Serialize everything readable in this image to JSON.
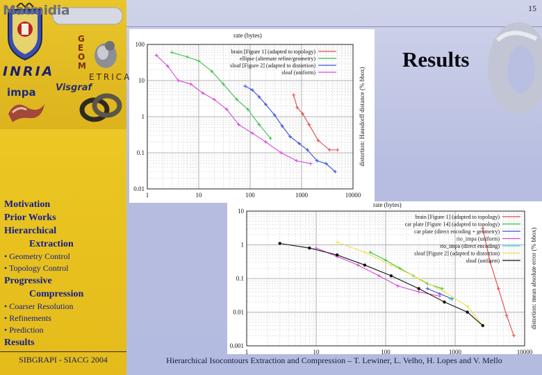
{
  "slide": {
    "number": "15",
    "title": "Results"
  },
  "logos": {
    "matmidia": "Matmidia",
    "geom_letters": [
      "G",
      "E",
      "O",
      "M"
    ],
    "geom_word": "ETRICA",
    "inria": "INRIA",
    "impa": "impa",
    "visgraf": "Visgraf"
  },
  "sidebar": {
    "items": [
      {
        "label": "Motivation",
        "kind": "heading"
      },
      {
        "label": "Prior Works",
        "kind": "heading"
      },
      {
        "label": "Hierarchical",
        "kind": "heading"
      },
      {
        "label": "Extraction",
        "kind": "heading-indent"
      },
      {
        "label": "• Geometry Control",
        "kind": "sub"
      },
      {
        "label": "• Topology Control",
        "kind": "sub"
      },
      {
        "label": "Progressive",
        "kind": "heading"
      },
      {
        "label": "Compression",
        "kind": "heading-indent"
      },
      {
        "label": "• Coarser Resolution",
        "kind": "sub"
      },
      {
        "label": "• Refinements",
        "kind": "sub"
      },
      {
        "label": "• Prediction",
        "kind": "sub"
      },
      {
        "label": "Results",
        "kind": "heading"
      }
    ]
  },
  "footer": {
    "left": "SIBGRAPI - SIACG 2004",
    "main": "Hierarchical Isocontours Extraction and Compression – T. Lewiner, L. Velho, H. Lopes and V. Mello"
  },
  "chart_data": [
    {
      "type": "line",
      "xscale": "log",
      "yscale": "log",
      "title": "",
      "xlabel": "rate (bytes)",
      "ylabel": "distortion: Hausdorff distance (% bbox)",
      "xlim": [
        1,
        10000
      ],
      "ylim": [
        0.01,
        100
      ],
      "xticks": [
        "1",
        "10",
        "100",
        "1000",
        "10000"
      ],
      "yticks": [
        "0.01",
        "0.1",
        "1",
        "10",
        "100"
      ],
      "grid": true,
      "legend_position": "top-right",
      "series": [
        {
          "name": "brain [Figure 1] (adapted to topology)",
          "color": "#e24a4a",
          "x": [
            700,
            820,
            1050,
            1400,
            2100,
            3500,
            5000
          ],
          "y": [
            4,
            1.8,
            1.2,
            0.6,
            0.22,
            0.12,
            0.12
          ]
        },
        {
          "name": "ellipse (alternate refine/geometry)",
          "color": "#3fbf4f",
          "x": [
            3,
            6,
            10,
            18,
            30,
            55,
            90,
            150,
            250
          ],
          "y": [
            60,
            45,
            35,
            18,
            8,
            3,
            1.6,
            0.6,
            0.25
          ]
        },
        {
          "name": "sloaf [Figure 2] (adapted to distortion)",
          "color": "#3a4fd6",
          "x": [
            80,
            110,
            150,
            200,
            300,
            420,
            600,
            900,
            1300,
            2000,
            3000,
            4500
          ],
          "y": [
            7,
            5.5,
            3.5,
            2.2,
            1.1,
            0.55,
            0.28,
            0.18,
            0.12,
            0.06,
            0.05,
            0.03
          ]
        },
        {
          "name": "sloaf (uniform)",
          "color": "#d24ad6",
          "x": [
            1.5,
            2.5,
            4,
            7,
            12,
            20,
            35,
            60,
            110,
            200,
            400,
            800,
            1500
          ],
          "y": [
            50,
            25,
            10,
            8,
            4.5,
            3,
            1.6,
            0.6,
            0.35,
            0.2,
            0.1,
            0.06,
            0.05
          ]
        }
      ]
    },
    {
      "type": "line",
      "xscale": "log",
      "yscale": "log",
      "title": "",
      "xlabel": "rate (bytes)",
      "ylabel": "distortion: mean absolute error (% bbox)",
      "xlim": [
        1,
        10000
      ],
      "ylim": [
        0.001,
        10
      ],
      "xticks": [
        "1",
        "10",
        "100",
        "1000",
        "10000"
      ],
      "yticks": [
        "0.001",
        "0.01",
        "0.1",
        "1",
        "10"
      ],
      "grid": true,
      "legend_position": "top-right",
      "series": [
        {
          "name": "brain [Figure 1] (adapted to topology)",
          "color": "#e24a4a",
          "x": [
            2500,
            3200,
            4200,
            5500,
            7000
          ],
          "y": [
            3,
            0.3,
            0.05,
            0.008,
            0.002
          ]
        },
        {
          "name": "car plate [Figure 14] (adapted to topology)",
          "color": "#3fbf4f",
          "x": [
            60,
            100,
            160,
            250,
            400,
            650
          ],
          "y": [
            0.6,
            0.35,
            0.2,
            0.12,
            0.07,
            0.05
          ]
        },
        {
          "name": "car plate (direct encoding + geometry)",
          "color": "#3a4fd6",
          "x": [
            400,
            600,
            900
          ],
          "y": [
            0.05,
            0.035,
            0.025
          ]
        },
        {
          "name": "rio_impa (uniform)",
          "color": "#d24ad6",
          "x": [
            10,
            20,
            40,
            80,
            150,
            300,
            600
          ],
          "y": [
            0.8,
            0.45,
            0.25,
            0.12,
            0.06,
            0.04,
            0.03
          ]
        },
        {
          "name": "rio_impa (direct encoding)",
          "color": "#2fd8e0",
          "x": [
            850
          ],
          "y": [
            0.025
          ]
        },
        {
          "name": "sloaf [Figure 2] (adapted to distortion)",
          "color": "#f2e04a",
          "x": [
            20,
            50,
            120,
            300,
            700,
            1500,
            2500
          ],
          "y": [
            1.2,
            0.6,
            0.25,
            0.1,
            0.04,
            0.015,
            0.004
          ]
        },
        {
          "name": "sloaf (uniform)",
          "color": "#111111",
          "x": [
            3,
            8,
            20,
            50,
            120,
            300,
            700,
            1500,
            2500
          ],
          "y": [
            1.1,
            0.8,
            0.5,
            0.25,
            0.12,
            0.05,
            0.02,
            0.01,
            0.004
          ]
        }
      ]
    }
  ]
}
